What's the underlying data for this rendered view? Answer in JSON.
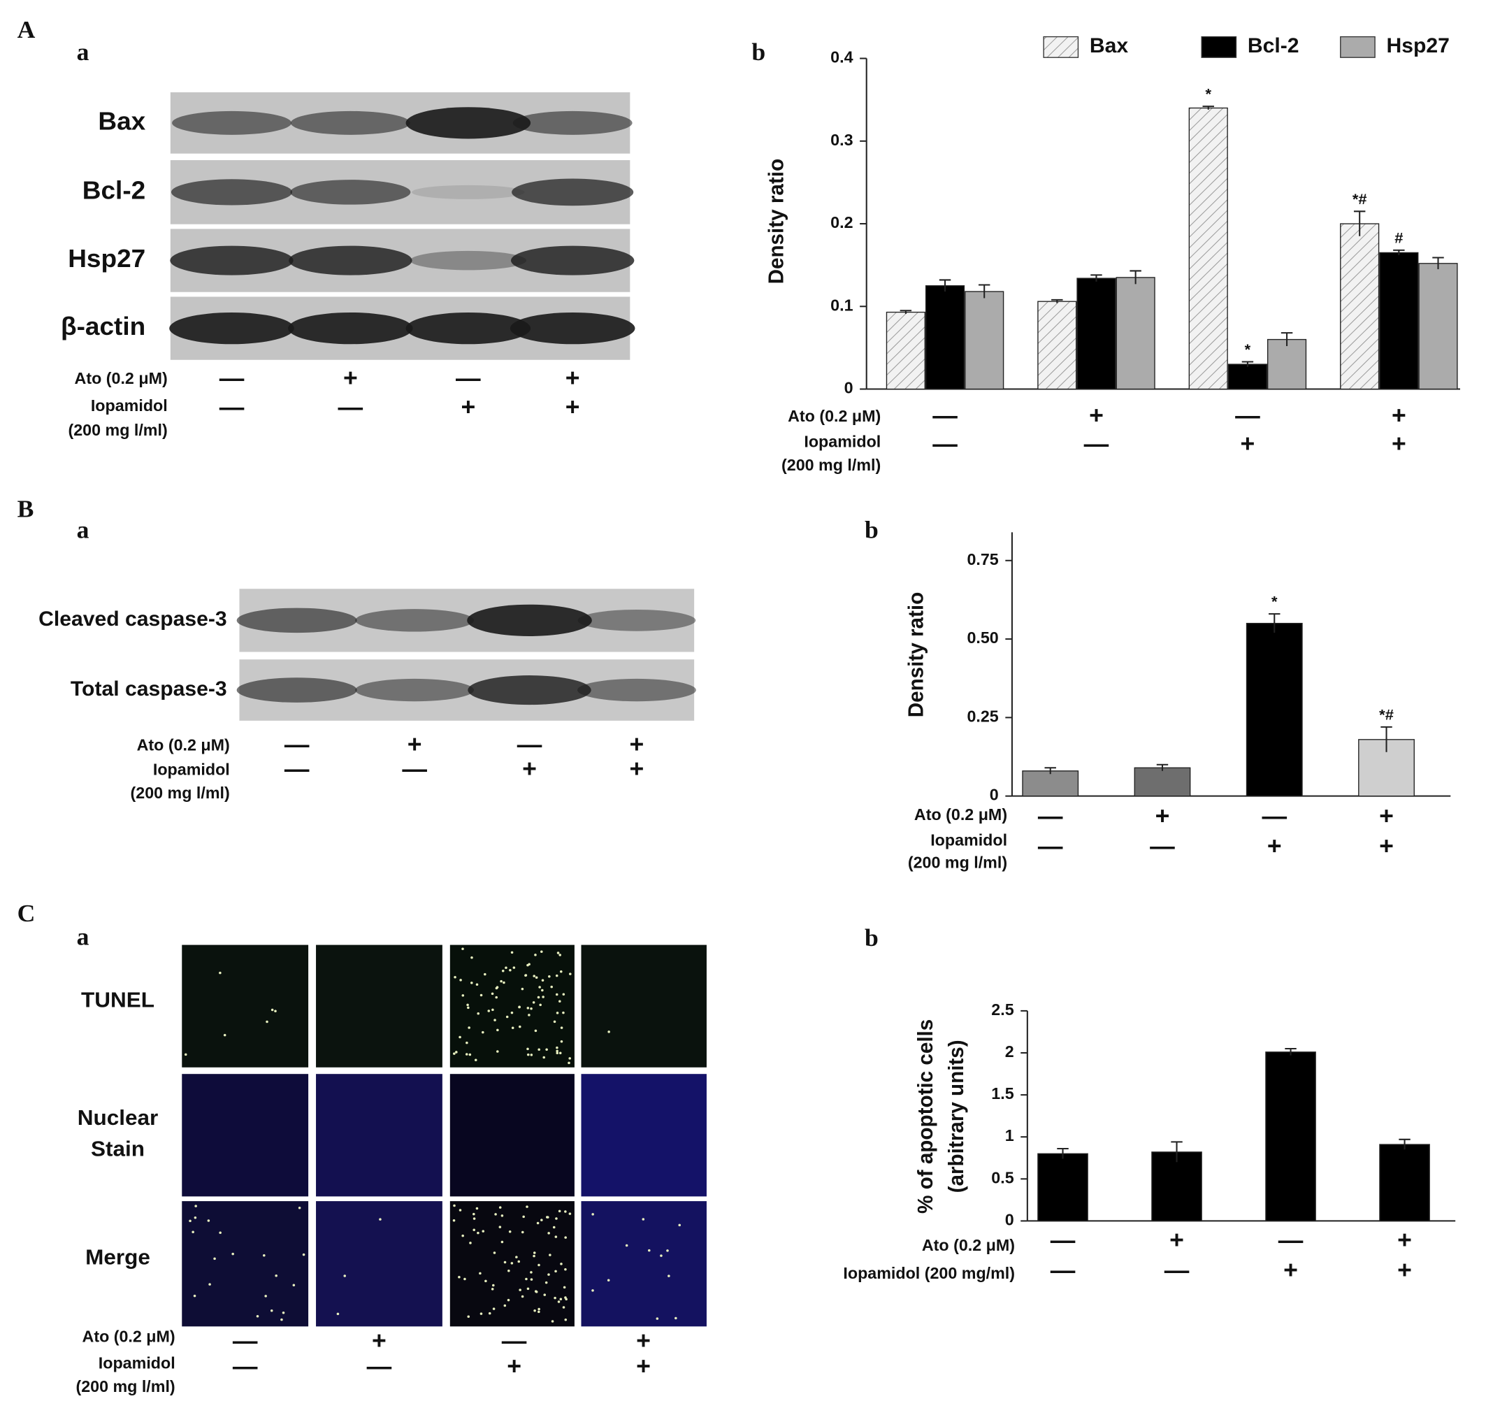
{
  "panels": [
    {
      "label": "A",
      "a": "a",
      "b": "b"
    },
    {
      "label": "B",
      "a": "a",
      "b": "b"
    },
    {
      "label": "C",
      "a": "a",
      "b": "b"
    }
  ],
  "blots": [
    {
      "rows": [
        "Bax",
        "Bcl-2",
        "Hsp27",
        "β-actin"
      ],
      "treatments": [
        {
          "label": [
            "Ato (0.2 μM)"
          ],
          "marks": [
            "—",
            "+",
            "—",
            "+"
          ]
        },
        {
          "label": [
            "Iopamidol",
            "(200 mg l/ml)"
          ],
          "marks": [
            "—",
            "—",
            "+",
            "+"
          ]
        }
      ]
    },
    {
      "rows": [
        "Cleaved caspase-3",
        "Total caspase-3"
      ],
      "treatments": [
        {
          "label": [
            "Ato (0.2 μM)"
          ],
          "marks": [
            "—",
            "+",
            "—",
            "+"
          ]
        },
        {
          "label": [
            "Iopamidol",
            "(200 mg l/ml)"
          ],
          "marks": [
            "—",
            "—",
            "+",
            "+"
          ]
        }
      ]
    },
    {
      "rows": [
        "TUNEL",
        [
          "Nuclear",
          "Stain"
        ],
        "Merge"
      ],
      "treatments": [
        {
          "label": [
            "Ato (0.2 μM)"
          ],
          "marks": [
            "—",
            "+",
            "—",
            "+"
          ]
        },
        {
          "label": [
            "Iopamidol",
            "(200 mg l/ml)"
          ],
          "marks": [
            "—",
            "—",
            "+",
            "+"
          ]
        }
      ]
    }
  ],
  "chart_data": [
    {
      "type": "bar",
      "ylabel": "Density ratio",
      "categories": [
        null,
        null,
        null,
        null
      ],
      "series": [
        {
          "name": "Bax",
          "color": "#f2f2f2",
          "hatch": true,
          "values": [
            0.093,
            0.106,
            0.34,
            0.2
          ],
          "errors": [
            0.002,
            0.002,
            0.002,
            0.015
          ],
          "annotations": [
            null,
            null,
            "*",
            "*#"
          ]
        },
        {
          "name": "Bcl-2",
          "color": "#000000",
          "values": [
            0.125,
            0.134,
            0.03,
            0.165
          ],
          "errors": [
            0.007,
            0.004,
            0.003,
            0.003
          ],
          "annotations": [
            null,
            null,
            "*",
            "#"
          ]
        },
        {
          "name": "Hsp27",
          "color": "#ababab",
          "values": [
            0.118,
            0.135,
            0.06,
            0.152
          ],
          "errors": [
            0.008,
            0.008,
            0.008,
            0.007
          ]
        }
      ],
      "ylim": [
        0,
        0.4
      ],
      "yticks": [
        0,
        0.1,
        0.2,
        0.3,
        0.4
      ],
      "legend": "top",
      "treatments": [
        {
          "label": [
            "Ato (0.2 μM)"
          ],
          "marks": [
            "—",
            "+",
            "—",
            "+"
          ]
        },
        {
          "label": [
            "Iopamidol",
            "(200 mg l/ml)"
          ],
          "marks": [
            "—",
            "—",
            "+",
            "+"
          ]
        }
      ]
    },
    {
      "type": "bar",
      "ylabel": "Density ratio",
      "categories": [
        null,
        null,
        null,
        null
      ],
      "values": [
        0.08,
        0.09,
        0.55,
        0.18
      ],
      "errors": [
        0.01,
        0.01,
        0.03,
        0.04
      ],
      "colors": [
        "#8c8c8c",
        "#6e6e6e",
        "#000000",
        "#cfcfcf"
      ],
      "annotations": [
        null,
        null,
        "*",
        "*#"
      ],
      "ylim": [
        0,
        0.84
      ],
      "yticks": [
        0,
        0.25,
        {
          "value": 0.5,
          "label": "0.50"
        },
        0.75
      ],
      "treatments": [
        {
          "label": [
            "Ato (0.2 μM)"
          ],
          "marks": [
            "—",
            "+",
            "—",
            "+"
          ]
        },
        {
          "label": [
            "Iopamidol",
            "(200 mg l/ml)"
          ],
          "marks": [
            "—",
            "—",
            "+",
            "+"
          ]
        }
      ]
    },
    {
      "type": "bar",
      "ylabel": [
        "% of apoptotic cells",
        "(arbitrary units)"
      ],
      "categories": [
        null,
        null,
        null,
        null
      ],
      "values": [
        0.8,
        0.82,
        2.01,
        0.91
      ],
      "errors": [
        0.06,
        0.12,
        0.04,
        0.06
      ],
      "colors": [
        "#000000",
        "#000000",
        "#000000",
        "#000000"
      ],
      "ylim": [
        0,
        2.5
      ],
      "yticks": [
        0,
        0.5,
        1,
        1.5,
        2,
        2.5
      ],
      "treatments": [
        {
          "label": [
            "Ato (0.2 μM)"
          ],
          "marks": [
            "—",
            "+",
            "—",
            "+"
          ]
        },
        {
          "label": [
            "Iopamidol (200 mg/ml)"
          ],
          "marks": [
            "—",
            "—",
            "+",
            "+"
          ]
        }
      ]
    }
  ]
}
